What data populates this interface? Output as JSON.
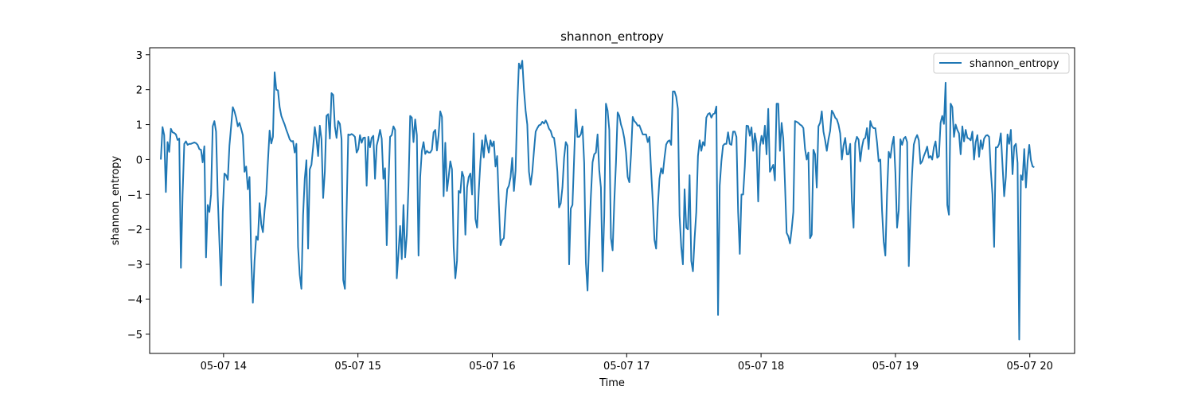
{
  "chart_data": {
    "type": "line",
    "title": "shannon_entropy",
    "xlabel": "Time",
    "ylabel": "shannon_entropy",
    "x_ticks": [
      "05-07 14",
      "05-07 15",
      "05-07 16",
      "05-07 17",
      "05-07 18",
      "05-07 19",
      "05-07 20"
    ],
    "y_ticks": [
      "3",
      "2",
      "1",
      "0",
      "−1",
      "−2",
      "−3",
      "−4",
      "−5"
    ],
    "y_tick_values": [
      3,
      2,
      1,
      0,
      -1,
      -2,
      -3,
      -4,
      -5
    ],
    "xlim": [
      "05-07 13:27",
      "05-07 20:20"
    ],
    "ylim": [
      -5.55,
      3.2
    ],
    "grid": false,
    "legend_position": "top-right",
    "series": [
      {
        "name": "shannon_entropy",
        "color": "#1f77b4",
        "x_start": "05-07 13:32",
        "x_end": "05-07 20:02",
        "values": [
          0.0,
          0.93,
          0.7,
          -0.93,
          0.5,
          0.22,
          0.88,
          0.78,
          0.76,
          0.72,
          0.56,
          0.6,
          -3.1,
          -1.0,
          0.45,
          0.52,
          0.42,
          0.45,
          0.45,
          0.47,
          0.49,
          0.47,
          0.42,
          0.3,
          0.28,
          -0.08,
          0.38,
          -2.8,
          -1.3,
          -1.5,
          -1.0,
          0.95,
          1.1,
          0.8,
          -1.05,
          -2.35,
          -3.6,
          -1.5,
          -0.4,
          -0.45,
          -0.58,
          0.4,
          0.95,
          1.5,
          1.38,
          1.2,
          0.95,
          1.05,
          0.88,
          0.7,
          -0.35,
          -0.2,
          -0.85,
          -0.5,
          -2.8,
          -4.1,
          -2.9,
          -2.2,
          -2.3,
          -1.25,
          -1.85,
          -2.08,
          -1.45,
          -1.0,
          -0.05,
          0.83,
          0.46,
          0.65,
          2.5,
          2.0,
          1.98,
          1.5,
          1.25,
          1.12,
          1.0,
          0.85,
          0.72,
          0.58,
          0.52,
          0.53,
          0.2,
          0.45,
          -2.5,
          -3.3,
          -3.7,
          -1.6,
          -0.55,
          -0.02,
          -2.55,
          -0.28,
          -0.15,
          0.35,
          0.93,
          0.6,
          0.1,
          0.97,
          0.58,
          -1.1,
          -0.35,
          1.25,
          1.3,
          0.6,
          1.9,
          1.85,
          0.95,
          0.62,
          1.1,
          1.02,
          0.58,
          -3.45,
          -3.7,
          -1.5,
          0.72,
          0.7,
          0.73,
          0.7,
          0.65,
          0.2,
          0.3,
          0.7,
          0.48,
          0.62,
          0.63,
          -0.75,
          0.65,
          0.35,
          0.62,
          0.68,
          -0.55,
          0.4,
          0.6,
          0.85,
          0.6,
          -0.55,
          -0.25,
          -2.45,
          -0.75,
          0.65,
          0.7,
          0.95,
          0.85,
          -3.4,
          -2.7,
          -1.9,
          -2.85,
          -1.3,
          -2.8,
          -2.15,
          -0.75,
          1.25,
          1.2,
          0.5,
          1.15,
          0.7,
          -2.75,
          -0.5,
          0.25,
          0.5,
          0.16,
          0.25,
          0.2,
          0.2,
          0.28,
          0.78,
          0.85,
          0.26,
          0.7,
          1.38,
          1.22,
          -1.05,
          0.48,
          -0.9,
          -0.5,
          -0.05,
          -0.28,
          -2.5,
          -3.4,
          -2.9,
          -0.9,
          -0.95,
          -0.35,
          -0.5,
          -2.15,
          -0.8,
          -0.5,
          -0.4,
          -1.0,
          0.75,
          -1.7,
          -1.95,
          -0.9,
          -0.05,
          0.55,
          0.06,
          0.7,
          0.45,
          0.2,
          0.55,
          0.38,
          0.52,
          -0.2,
          0.1,
          -1.25,
          -2.45,
          -2.3,
          -2.25,
          -1.45,
          -0.85,
          -0.75,
          -0.5,
          0.05,
          -0.9,
          -0.32,
          1.5,
          2.75,
          2.6,
          2.83,
          2.0,
          1.4,
          1.0,
          -0.35,
          -0.72,
          -0.35,
          0.25,
          0.8,
          0.9,
          0.98,
          1.0,
          1.08,
          1.03,
          1.12,
          1.02,
          0.88,
          0.82,
          0.65,
          0.62,
          0.25,
          -0.35,
          -1.37,
          -1.25,
          -0.8,
          0.05,
          0.5,
          0.4,
          -3.0,
          -1.4,
          -1.3,
          0.05,
          1.43,
          0.65,
          0.65,
          0.72,
          0.95,
          -0.1,
          -2.95,
          -3.75,
          -2.25,
          -1.05,
          -0.08,
          0.15,
          0.2,
          0.72,
          -0.3,
          -0.8,
          -3.2,
          -1.6,
          1.6,
          1.4,
          0.85,
          -2.25,
          -2.6,
          -1.2,
          -0.1,
          1.35,
          1.25,
          1.0,
          0.85,
          0.6,
          0.2,
          -0.5,
          -0.65,
          0.15,
          1.22,
          1.1,
          1.05,
          0.97,
          0.98,
          0.85,
          0.72,
          0.72,
          0.72,
          0.5,
          0.65,
          -0.32,
          -1.2,
          -2.3,
          -2.55,
          -1.35,
          -0.55,
          -0.25,
          -0.4,
          0.05,
          0.43,
          0.52,
          0.55,
          0.42,
          1.95,
          1.95,
          1.8,
          1.45,
          -1.6,
          -2.5,
          -3.0,
          -0.85,
          -1.95,
          -2.0,
          -0.45,
          -2.9,
          -3.2,
          -2.25,
          -1.5,
          0.1,
          0.55,
          0.25,
          0.5,
          0.4,
          1.2,
          1.3,
          1.33,
          1.2,
          1.3,
          1.32,
          1.52,
          -4.45,
          -0.75,
          -0.05,
          0.4,
          0.45,
          0.45,
          0.78,
          0.45,
          0.42,
          0.8,
          0.8,
          0.65,
          -1.5,
          -2.7,
          -1.0,
          -1.0,
          -0.2,
          0.97,
          0.96,
          0.68,
          0.92,
          0.25,
          0.75,
          0.45,
          -1.2,
          0.37,
          0.68,
          0.45,
          0.97,
          0.15,
          1.45,
          -0.35,
          -0.25,
          -0.15,
          -0.6,
          1.6,
          1.6,
          0.25,
          1.05,
          0.6,
          -0.7,
          -2.1,
          -2.2,
          -2.4,
          -2.0,
          -1.5,
          1.1,
          1.08,
          1.05,
          1.0,
          0.97,
          0.9,
          0.3,
          0.0,
          0.2,
          -2.25,
          -2.15,
          0.28,
          0.15,
          -0.8,
          0.95,
          1.05,
          1.38,
          0.8,
          0.55,
          0.25,
          0.58,
          0.82,
          1.4,
          1.32,
          1.2,
          1.15,
          1.0,
          0.75,
          0.0,
          0.4,
          0.62,
          0.15,
          0.15,
          0.45,
          -1.2,
          -1.95,
          0.47,
          0.65,
          0.57,
          -0.05,
          0.35,
          0.58,
          0.62,
          0.9,
          0.3,
          1.1,
          0.95,
          0.9,
          0.9,
          0.5,
          -0.05,
          0.0,
          -1.45,
          -2.35,
          -2.75,
          -1.0,
          0.22,
          0.05,
          0.42,
          0.65,
          -0.38,
          -1.95,
          -1.45,
          0.58,
          0.42,
          0.6,
          0.65,
          0.5,
          -3.05,
          -1.5,
          -0.38,
          0.43,
          0.6,
          0.7,
          0.55,
          -0.12,
          -0.05,
          0.1,
          0.22,
          0.37,
          0.05,
          0.1,
          0.0,
          0.35,
          0.52,
          0.05,
          0.1,
          1.05,
          1.25,
          1.02,
          2.2,
          -1.3,
          -1.58,
          1.6,
          1.5,
          0.65,
          1.0,
          0.85,
          0.75,
          0.15,
          0.95,
          0.52,
          0.85,
          0.62,
          0.6,
          0.55,
          0.8,
          0.0,
          0.5,
          0.7,
          0.08,
          0.55,
          0.3,
          0.6,
          0.68,
          0.7,
          0.65,
          -0.3,
          -1.0,
          -2.5,
          0.35,
          0.35,
          0.45,
          0.75,
          -0.15,
          -1.05,
          -0.5,
          0.72,
          0.45,
          0.85,
          -0.42,
          0.38,
          0.45,
          -0.1,
          -5.15,
          -0.45,
          -0.58,
          0.3,
          -0.8,
          -0.05,
          0.42,
          -0.02,
          -0.2,
          -0.22
        ]
      }
    ]
  }
}
